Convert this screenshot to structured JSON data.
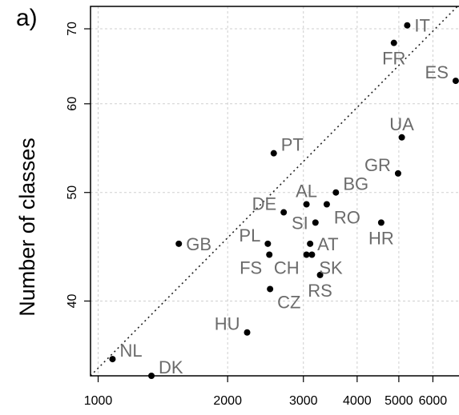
{
  "chart_data": {
    "type": "scatter",
    "panel_label": "a)",
    "ylabel": "Number of classes",
    "xlabel": "",
    "x_scale": "log",
    "y_scale": "log",
    "xlim": [
      960,
      6900
    ],
    "ylim": [
      34.3,
      73.3
    ],
    "x_ticks": [
      1000,
      2000,
      3000,
      4000,
      5000,
      6000
    ],
    "x_tick_labels": [
      "1000",
      "2000",
      "3000",
      "4000",
      "5000",
      "6000"
    ],
    "y_ticks": [
      40,
      50,
      60,
      70
    ],
    "y_tick_labels": [
      "40",
      "50",
      "60",
      "70"
    ],
    "grid": true,
    "reference_line": "diagonal, dotted",
    "points": [
      {
        "label": "IT",
        "x": 5230,
        "y": 70.5,
        "label_pos": "right"
      },
      {
        "label": "FR",
        "x": 4870,
        "y": 68.0,
        "label_pos": "below"
      },
      {
        "label": "ES",
        "x": 6780,
        "y": 62.9,
        "label_pos": "upper-left"
      },
      {
        "label": "UA",
        "x": 5080,
        "y": 56.0,
        "label_pos": "above"
      },
      {
        "label": "PT",
        "x": 2560,
        "y": 54.2,
        "label_pos": "upper-right"
      },
      {
        "label": "GR",
        "x": 4980,
        "y": 52.0,
        "label_pos": "upper-left"
      },
      {
        "label": "BG",
        "x": 3570,
        "y": 50.0,
        "label_pos": "upper-right"
      },
      {
        "label": "AL",
        "x": 3050,
        "y": 48.8,
        "label_pos": "above"
      },
      {
        "label": "RO",
        "x": 3400,
        "y": 48.8,
        "label_pos": "lower-right"
      },
      {
        "label": "DE",
        "x": 2700,
        "y": 48.0,
        "label_pos": "upper-left"
      },
      {
        "label": "SI",
        "x": 3200,
        "y": 47.0,
        "label_pos": "left"
      },
      {
        "label": "HR",
        "x": 4550,
        "y": 47.0,
        "label_pos": "below"
      },
      {
        "label": "GB",
        "x": 1540,
        "y": 45.0,
        "label_pos": "right"
      },
      {
        "label": "PL",
        "x": 2480,
        "y": 45.0,
        "label_pos": "upper-left"
      },
      {
        "label": "AT",
        "x": 3110,
        "y": 45.0,
        "label_pos": "right"
      },
      {
        "label": "FS",
        "x": 2500,
        "y": 44.0,
        "label_pos": "lower-left"
      },
      {
        "label": "CH",
        "x": 3050,
        "y": 44.0,
        "label_pos": "lower-left"
      },
      {
        "label": "SK",
        "x": 3140,
        "y": 44.0,
        "label_pos": "lower-right"
      },
      {
        "label": "RS",
        "x": 3280,
        "y": 42.2,
        "label_pos": "below"
      },
      {
        "label": "CZ",
        "x": 2510,
        "y": 41.0,
        "label_pos": "lower-right"
      },
      {
        "label": "HU",
        "x": 2220,
        "y": 37.5,
        "label_pos": "upper-left"
      },
      {
        "label": "NL",
        "x": 1080,
        "y": 35.5,
        "label_pos": "upper-right"
      },
      {
        "label": "DK",
        "x": 1330,
        "y": 34.3,
        "label_pos": "upper-right"
      }
    ]
  }
}
